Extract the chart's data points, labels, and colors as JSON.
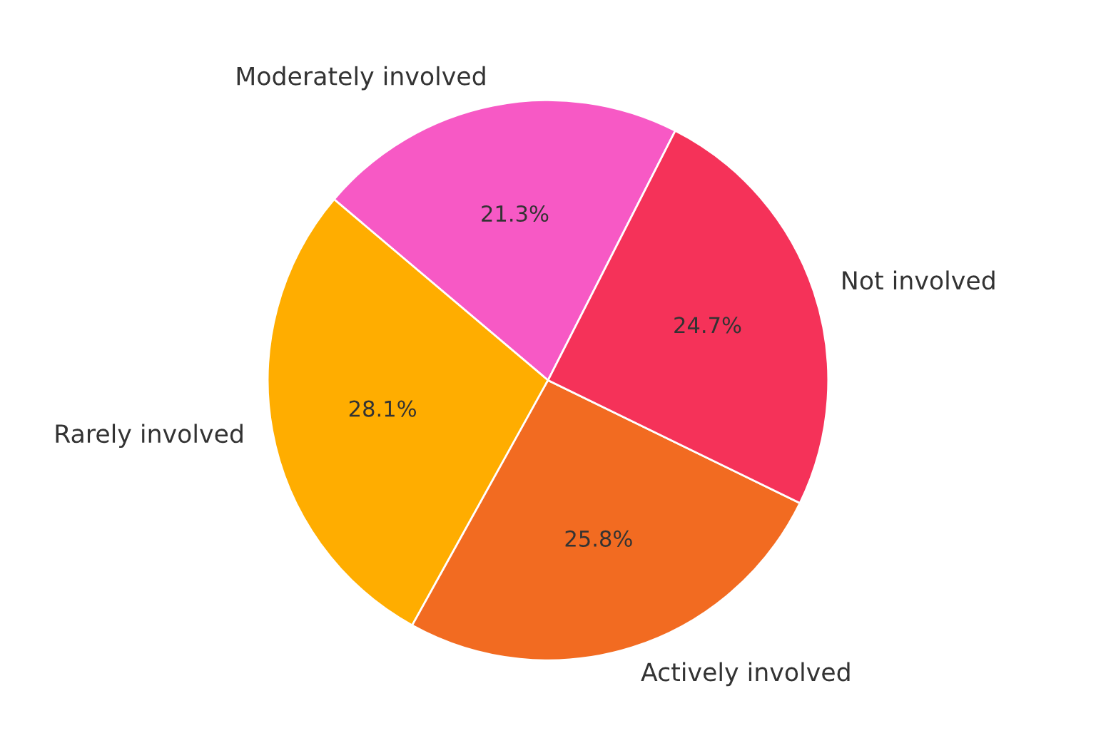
{
  "chart_data": {
    "type": "pie",
    "categories": [
      "Moderately involved",
      "Rarely involved",
      "Actively involved",
      "Not involved"
    ],
    "values": [
      21.3,
      28.1,
      25.8,
      24.7
    ],
    "colors": [
      "#f759c5",
      "#ffad00",
      "#f26b21",
      "#f53259"
    ],
    "value_labels": [
      "21.3%",
      "28.1%",
      "25.8%",
      "24.7%"
    ]
  }
}
